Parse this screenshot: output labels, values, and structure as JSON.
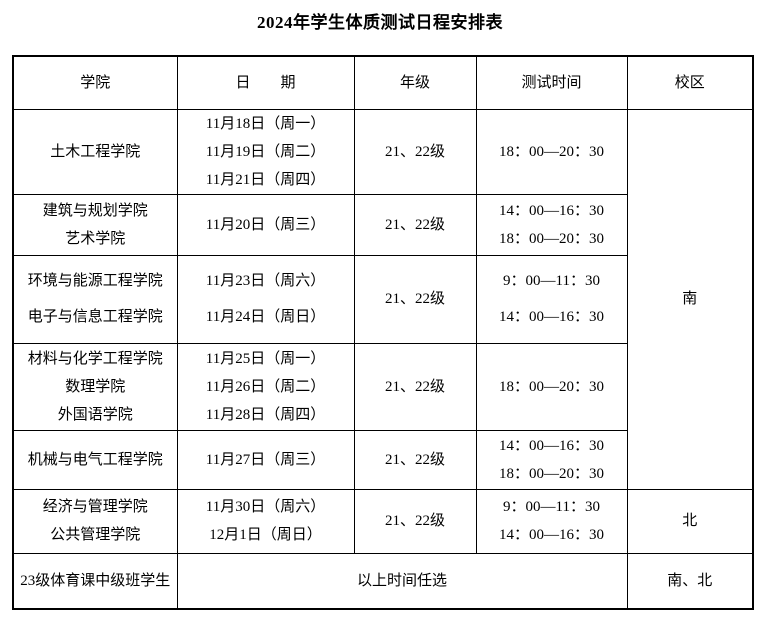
{
  "title": "2024年学生体质测试日程安排表",
  "colors": {
    "background": "#ffffff",
    "text": "#000000",
    "border": "#000000"
  },
  "table": {
    "headers": {
      "college": "学院",
      "date": "日　　期",
      "grade": "年级",
      "time": "测试时间",
      "campus": "校区"
    },
    "rows": [
      {
        "colleges": [
          "土木工程学院"
        ],
        "dates": [
          "11月18日（周一）",
          "11月19日（周二）",
          "11月21日（周四）"
        ],
        "grade": "21、22级",
        "times": [
          "18：00—20：30"
        ],
        "campus": "南"
      },
      {
        "colleges": [
          "建筑与规划学院",
          "艺术学院"
        ],
        "dates": [
          "11月20日（周三）"
        ],
        "grade": "21、22级",
        "times": [
          "14：00—16：30",
          "18：00—20：30"
        ]
      },
      {
        "colleges": [
          "环境与能源工程学院",
          "电子与信息工程学院"
        ],
        "dates": [
          "11月23日（周六）",
          "11月24日（周日）"
        ],
        "grade": "21、22级",
        "times": [
          "9：00—11：30",
          "14：00—16：30"
        ]
      },
      {
        "colleges": [
          "材料与化学工程学院",
          "数理学院",
          "外国语学院"
        ],
        "dates": [
          "11月25日（周一）",
          "11月26日（周二）",
          "11月28日（周四）"
        ],
        "grade": "21、22级",
        "times": [
          "18：00—20：30"
        ]
      },
      {
        "colleges": [
          "机械与电气工程学院"
        ],
        "dates": [
          "11月27日（周三）"
        ],
        "grade": "21、22级",
        "times": [
          "14：00—16：30",
          "18：00—20：30"
        ]
      },
      {
        "colleges": [
          "经济与管理学院",
          "公共管理学院"
        ],
        "dates": [
          "11月30日（周六）",
          "12月1日（周日）"
        ],
        "grade": "21、22级",
        "times": [
          "9：00—11：30",
          "14：00—16：30"
        ],
        "campus": "北"
      },
      {
        "colleges": [
          "23级体育课中级班学生"
        ],
        "note": "以上时间任选",
        "campus": "南、北"
      }
    ]
  }
}
